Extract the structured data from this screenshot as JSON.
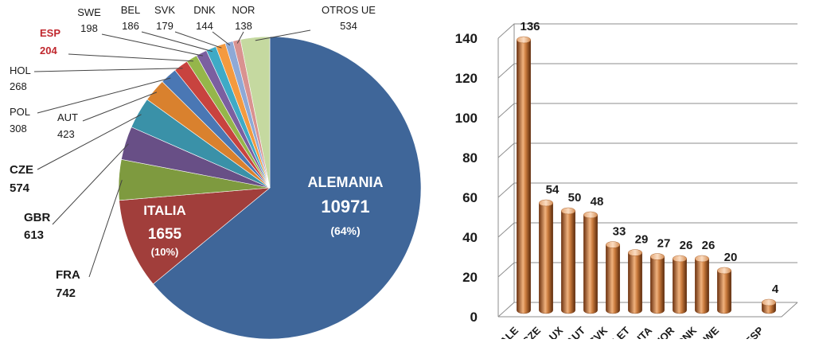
{
  "chart_data": [
    {
      "type": "pie",
      "slices": [
        {
          "label": "ALEMANIA",
          "value": 10971,
          "percent_label": "(64%)",
          "color": "#3F6699"
        },
        {
          "label": "ITALIA",
          "value": 1655,
          "percent_label": "(10%)",
          "color": "#A13E3B"
        },
        {
          "label": "FRA",
          "value": 742,
          "color": "#7E9A3F"
        },
        {
          "label": "GBR",
          "value": 613,
          "color": "#684F86"
        },
        {
          "label": "CZE",
          "value": 574,
          "color": "#3A91A8"
        },
        {
          "label": "AUT",
          "value": 423,
          "color": "#D9812E"
        },
        {
          "label": "POL",
          "value": 308,
          "color": "#4A77B4"
        },
        {
          "label": "HOL",
          "value": 268,
          "color": "#C8433F"
        },
        {
          "label": "ESP",
          "value": 204,
          "color": "#95B64A",
          "highlight": true
        },
        {
          "label": "SWE",
          "value": 198,
          "color": "#7B5FA0"
        },
        {
          "label": "BEL",
          "value": 186,
          "color": "#3FAAC6"
        },
        {
          "label": "SVK",
          "value": 179,
          "color": "#F49A3F"
        },
        {
          "label": "DNK",
          "value": 144,
          "color": "#8EA9D6"
        },
        {
          "label": "NOR",
          "value": 138,
          "color": "#D99290"
        },
        {
          "label": "OTROS UE",
          "value": 534,
          "color": "#C5D9A0"
        }
      ],
      "label_color": "#1a1a1a",
      "highlight_color": "#C0272D"
    },
    {
      "type": "bar",
      "categories": [
        "ALE",
        "CZE",
        "LUX",
        "AUT",
        "SVK",
        "LET",
        "ITA",
        "NOR",
        "DNK",
        "SWE",
        "",
        "ESP"
      ],
      "values": [
        136,
        54,
        50,
        48,
        33,
        29,
        27,
        26,
        26,
        20,
        null,
        4
      ],
      "data_labels": [
        "136",
        "54",
        "50",
        "48",
        "33",
        "29",
        "27",
        "26",
        "26",
        "20",
        "",
        "4"
      ],
      "ylim": [
        0,
        140
      ],
      "yticks": [
        0,
        20,
        40,
        60,
        80,
        100,
        120,
        140
      ],
      "grid": true,
      "bar_style": "3d-cylinder",
      "bar_color": "#C46E2E"
    }
  ]
}
